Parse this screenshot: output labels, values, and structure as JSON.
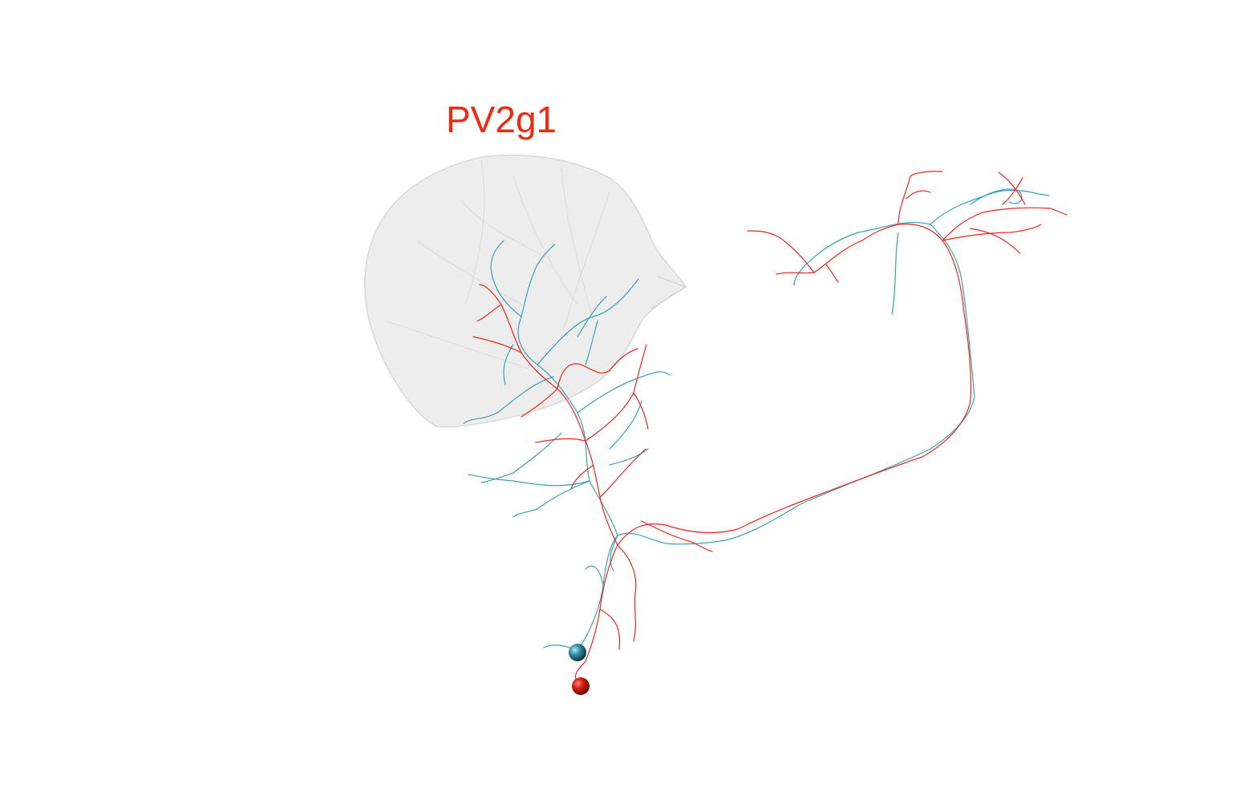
{
  "title": "PV2g1",
  "colors": {
    "title": "#ee2a10",
    "neuron_a": "#e8261a",
    "neuron_b": "#3aa0b8",
    "neuropil": "#e2e2e2",
    "soma_a": "#d91b10",
    "soma_b": "#2f8fa8"
  }
}
